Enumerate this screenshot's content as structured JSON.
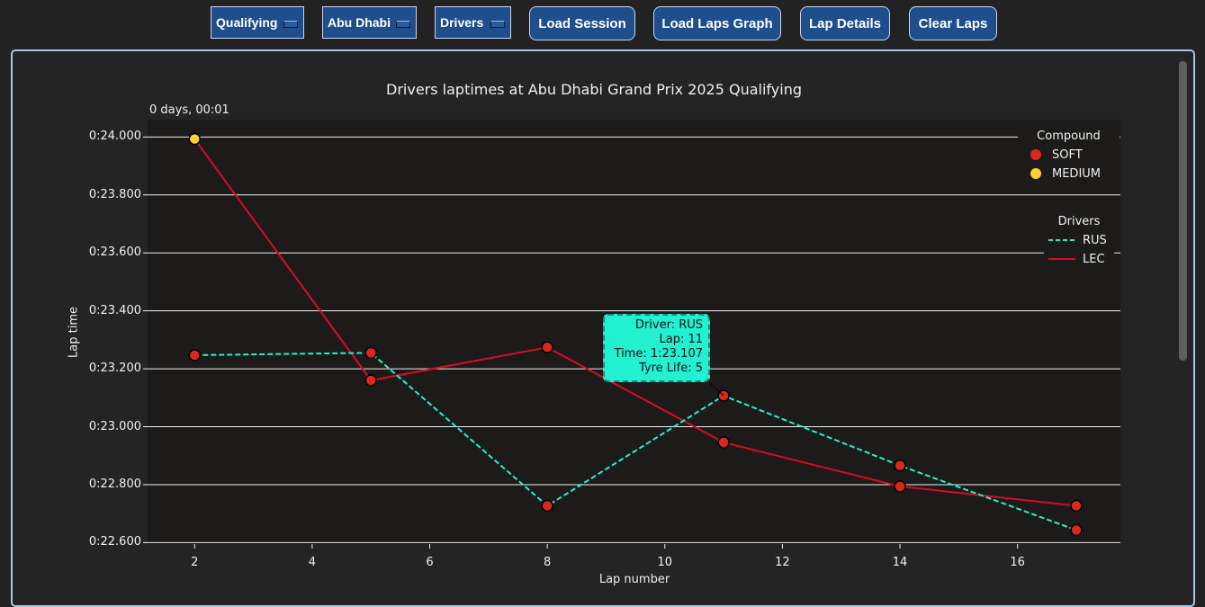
{
  "toolbar": {
    "session_select": "Qualifying",
    "event_select": "Abu Dhabi",
    "drivers_select": "Drivers",
    "load_session_label": "Load Session",
    "load_laps_graph_label": "Load Laps Graph",
    "lap_details_label": "Lap Details",
    "clear_laps_label": "Clear Laps",
    "accent_color": "#1f4e8c"
  },
  "chart_data": {
    "type": "line",
    "title": "Drivers laptimes at Abu Dhabi Grand Prix 2025 Qualifying",
    "time_offset_label": "0 days, 00:01",
    "xlabel": "Lap number",
    "ylabel": "Lap time",
    "xlim": [
      1.2,
      17.75
    ],
    "ylim": [
      22.595,
      24.06
    ],
    "x_ticks": [
      "2",
      "4",
      "6",
      "8",
      "10",
      "12",
      "14",
      "16"
    ],
    "y_ticks": [
      "0:24.000",
      "0:23.800",
      "0:23.600",
      "0:23.400",
      "0:23.200",
      "0:23.000",
      "0:22.800",
      "0:22.600"
    ],
    "grid": "horizontal",
    "series": [
      {
        "name": "RUS",
        "color": "#22f1d1",
        "dash": "dashed",
        "points": [
          {
            "x": 2,
            "y": 23.247,
            "compound": "SOFT"
          },
          {
            "x": 5,
            "y": 23.255,
            "compound": "SOFT"
          },
          {
            "x": 8,
            "y": 22.727,
            "compound": "SOFT"
          },
          {
            "x": 11,
            "y": 23.107,
            "compound": "SOFT"
          },
          {
            "x": 14,
            "y": 22.866,
            "compound": "SOFT"
          },
          {
            "x": 17,
            "y": 22.643,
            "compound": "SOFT"
          }
        ]
      },
      {
        "name": "LEC",
        "color": "#dc0a28",
        "dash": "solid",
        "points": [
          {
            "x": 2,
            "y": 23.993,
            "compound": "MEDIUM"
          },
          {
            "x": 5,
            "y": 23.16,
            "compound": "SOFT"
          },
          {
            "x": 8,
            "y": 23.274,
            "compound": "SOFT"
          },
          {
            "x": 11,
            "y": 22.946,
            "compound": "SOFT"
          },
          {
            "x": 14,
            "y": 22.794,
            "compound": "SOFT"
          },
          {
            "x": 17,
            "y": 22.727,
            "compound": "SOFT"
          }
        ]
      }
    ],
    "compound_legend": {
      "title": "Compound",
      "placement": "top-right",
      "items": [
        {
          "label": "SOFT",
          "color": "#da291c"
        },
        {
          "label": "MEDIUM",
          "color": "#ffd12e"
        }
      ]
    },
    "drivers_legend": {
      "title": "Drivers",
      "placement": "upper-right",
      "items": [
        {
          "label": "RUS",
          "color": "#22f1d1",
          "dash": "dashed"
        },
        {
          "label": "LEC",
          "color": "#dc0a28",
          "dash": "solid"
        }
      ]
    },
    "tooltip": {
      "lines": [
        "Driver: RUS",
        "Lap: 11",
        "Time: 1:23.107",
        "Tyre Life: 5"
      ],
      "anchor": {
        "x": 11,
        "y": 23.107
      }
    }
  }
}
